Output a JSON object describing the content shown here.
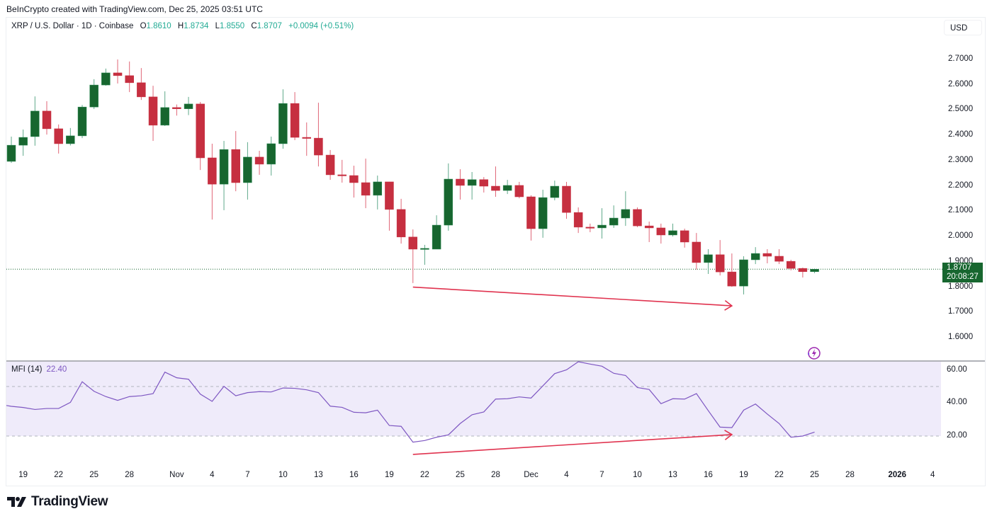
{
  "attribution": "BeInCrypto created with TradingView.com, Dec 25, 2025 03:51 UTC",
  "header": {
    "symbol": "XRP / U.S. Dollar · 1D · Coinbase",
    "o_label": "O",
    "o_value": "1.8610",
    "h_label": "H",
    "h_value": "1.8734",
    "l_label": "L",
    "l_value": "1.8550",
    "c_label": "C",
    "c_value": "1.8707",
    "change": "+0.0094 (+0.51%)"
  },
  "currency_button": "USD",
  "price_axis": {
    "ticks": [
      "2.7000",
      "2.6000",
      "2.5000",
      "2.4000",
      "2.3000",
      "2.2000",
      "2.1000",
      "2.0000",
      "1.9000",
      "1.8000",
      "1.7000",
      "1.6000"
    ]
  },
  "last_price": {
    "value": "1.8707",
    "countdown": "20:08:27"
  },
  "indicator": {
    "name": "MFI (14)",
    "value": "22.40",
    "ticks": [
      "60.00",
      "40.00",
      "20.00"
    ]
  },
  "x_axis": {
    "labels": [
      {
        "text": "19",
        "i": 1
      },
      {
        "text": "22",
        "i": 4
      },
      {
        "text": "25",
        "i": 7
      },
      {
        "text": "28",
        "i": 10
      },
      {
        "text": "Nov",
        "i": 14
      },
      {
        "text": "4",
        "i": 17
      },
      {
        "text": "7",
        "i": 20
      },
      {
        "text": "10",
        "i": 23
      },
      {
        "text": "13",
        "i": 26
      },
      {
        "text": "16",
        "i": 29
      },
      {
        "text": "19",
        "i": 32
      },
      {
        "text": "22",
        "i": 35
      },
      {
        "text": "25",
        "i": 38
      },
      {
        "text": "28",
        "i": 41
      },
      {
        "text": "Dec",
        "i": 44
      },
      {
        "text": "4",
        "i": 47
      },
      {
        "text": "7",
        "i": 50
      },
      {
        "text": "10",
        "i": 53
      },
      {
        "text": "13",
        "i": 56
      },
      {
        "text": "16",
        "i": 59
      },
      {
        "text": "19",
        "i": 62
      },
      {
        "text": "22",
        "i": 65
      },
      {
        "text": "25",
        "i": 68
      },
      {
        "text": "28",
        "i": 71
      },
      {
        "text": "2026",
        "i": 75,
        "bold": true
      },
      {
        "text": "4",
        "i": 78
      }
    ]
  },
  "colors": {
    "up": "#17662f",
    "down": "#c62f40",
    "up_wick": "#5fa98a",
    "down_wick": "#e06677",
    "mfi": "#7e57c2",
    "mfi_fill": "#efebfa",
    "arrow": "#e0334f",
    "value": "#22ab94"
  },
  "chart_data": [
    {
      "type": "candlestick",
      "title": "XRP / U.S. Dollar · 1D · Coinbase",
      "x_start": "Oct 18",
      "x_end": "Dec 25",
      "ylim": [
        1.55,
        2.72
      ],
      "ohlc": [
        [
          2.297,
          2.395,
          2.291,
          2.361
        ],
        [
          2.361,
          2.423,
          2.319,
          2.392
        ],
        [
          2.395,
          2.554,
          2.359,
          2.496
        ],
        [
          2.496,
          2.535,
          2.403,
          2.426
        ],
        [
          2.426,
          2.443,
          2.328,
          2.367
        ],
        [
          2.367,
          2.429,
          2.36,
          2.398
        ],
        [
          2.398,
          2.52,
          2.389,
          2.512
        ],
        [
          2.512,
          2.622,
          2.504,
          2.599
        ],
        [
          2.599,
          2.664,
          2.596,
          2.647
        ],
        [
          2.647,
          2.7,
          2.605,
          2.636
        ],
        [
          2.636,
          2.692,
          2.571,
          2.608
        ],
        [
          2.608,
          2.666,
          2.54,
          2.552
        ],
        [
          2.552,
          2.596,
          2.378,
          2.44
        ],
        [
          2.44,
          2.574,
          2.437,
          2.51
        ],
        [
          2.51,
          2.522,
          2.478,
          2.505
        ],
        [
          2.505,
          2.552,
          2.48,
          2.524
        ],
        [
          2.524,
          2.532,
          2.263,
          2.311
        ],
        [
          2.311,
          2.367,
          2.067,
          2.207
        ],
        [
          2.207,
          2.378,
          2.104,
          2.344
        ],
        [
          2.344,
          2.417,
          2.179,
          2.213
        ],
        [
          2.213,
          2.373,
          2.146,
          2.314
        ],
        [
          2.314,
          2.339,
          2.244,
          2.286
        ],
        [
          2.286,
          2.395,
          2.241,
          2.367
        ],
        [
          2.367,
          2.582,
          2.347,
          2.526
        ],
        [
          2.526,
          2.571,
          2.381,
          2.392
        ],
        [
          2.392,
          2.451,
          2.319,
          2.389
        ],
        [
          2.389,
          2.529,
          2.277,
          2.322
        ],
        [
          2.322,
          2.342,
          2.224,
          2.244
        ],
        [
          2.244,
          2.303,
          2.213,
          2.241
        ],
        [
          2.241,
          2.28,
          2.154,
          2.213
        ],
        [
          2.213,
          2.308,
          2.112,
          2.163
        ],
        [
          2.163,
          2.241,
          2.107,
          2.216
        ],
        [
          2.216,
          2.216,
          2.023,
          2.107
        ],
        [
          2.107,
          2.149,
          1.972,
          1.998
        ],
        [
          1.998,
          2.028,
          1.816,
          1.95
        ],
        [
          1.95,
          1.967,
          1.888,
          1.953
        ],
        [
          1.95,
          2.084,
          1.95,
          2.045
        ],
        [
          2.045,
          2.289,
          2.023,
          2.227
        ],
        [
          2.227,
          2.266,
          2.146,
          2.202
        ],
        [
          2.202,
          2.255,
          2.146,
          2.225
        ],
        [
          2.225,
          2.235,
          2.174,
          2.199
        ],
        [
          2.199,
          2.277,
          2.157,
          2.182
        ],
        [
          2.182,
          2.224,
          2.168,
          2.202
        ],
        [
          2.202,
          2.216,
          2.151,
          2.157
        ],
        [
          2.157,
          2.163,
          1.984,
          2.031
        ],
        [
          2.031,
          2.185,
          1.995,
          2.154
        ],
        [
          2.154,
          2.221,
          2.143,
          2.199
        ],
        [
          2.199,
          2.216,
          2.07,
          2.095
        ],
        [
          2.095,
          2.115,
          2.014,
          2.037
        ],
        [
          2.037,
          2.051,
          2.017,
          2.034
        ],
        [
          2.034,
          2.112,
          1.992,
          2.045
        ],
        [
          2.045,
          2.123,
          2.034,
          2.073
        ],
        [
          2.073,
          2.179,
          2.042,
          2.107
        ],
        [
          2.107,
          2.115,
          2.037,
          2.042
        ],
        [
          2.042,
          2.059,
          1.978,
          2.034
        ],
        [
          2.034,
          2.051,
          1.972,
          2.006
        ],
        [
          2.006,
          2.051,
          2.0,
          2.023
        ],
        [
          2.023,
          2.031,
          1.956,
          1.978
        ],
        [
          1.978,
          2.014,
          1.869,
          1.897
        ],
        [
          1.897,
          1.95,
          1.852,
          1.928
        ],
        [
          1.928,
          1.986,
          1.846,
          1.86
        ],
        [
          1.86,
          1.933,
          1.801,
          1.804
        ],
        [
          1.804,
          1.922,
          1.771,
          1.908
        ],
        [
          1.908,
          1.958,
          1.891,
          1.933
        ],
        [
          1.933,
          1.95,
          1.894,
          1.922
        ],
        [
          1.922,
          1.95,
          1.891,
          1.902
        ],
        [
          1.902,
          1.908,
          1.866,
          1.874
        ],
        [
          1.874,
          1.877,
          1.838,
          1.861
        ],
        [
          1.861,
          1.8734,
          1.855,
          1.8707
        ]
      ],
      "last_price": 1.8707,
      "annotation_arrow": {
        "from": {
          "i": 34,
          "y": 1.8
        },
        "to": {
          "i": 61,
          "y": 1.726
        }
      }
    },
    {
      "type": "line",
      "title": "MFI (14)",
      "ylim": [
        5,
        66
      ],
      "guides": [
        50,
        20
      ],
      "values": [
        38.0,
        37.3,
        36.1,
        36.7,
        36.7,
        40.4,
        52.9,
        47.1,
        43.9,
        41.6,
        43.9,
        44.4,
        45.7,
        58.7,
        55.3,
        54.4,
        45.4,
        41.0,
        50.1,
        44.4,
        46.3,
        46.9,
        46.7,
        49.1,
        48.9,
        48.0,
        46.3,
        38.1,
        37.4,
        34.4,
        34.1,
        35.7,
        26.4,
        25.9,
        16.3,
        17.3,
        19.3,
        20.7,
        27.6,
        32.9,
        34.6,
        42.4,
        42.6,
        43.7,
        43.0,
        50.4,
        57.8,
        60.1,
        65.4,
        63.6,
        62.3,
        58.0,
        56.7,
        49.4,
        48.2,
        39.6,
        42.6,
        42.4,
        45.7,
        35.4,
        25.4,
        25.1,
        35.7,
        39.4,
        33.3,
        27.6,
        19.3,
        20.0,
        22.4
      ],
      "annotation_arrow": {
        "from": {
          "i": 34,
          "y": 8.9
        },
        "to": {
          "i": 61,
          "y": 20.9
        }
      }
    }
  ],
  "footer": {
    "logo_text": "TradingView"
  }
}
